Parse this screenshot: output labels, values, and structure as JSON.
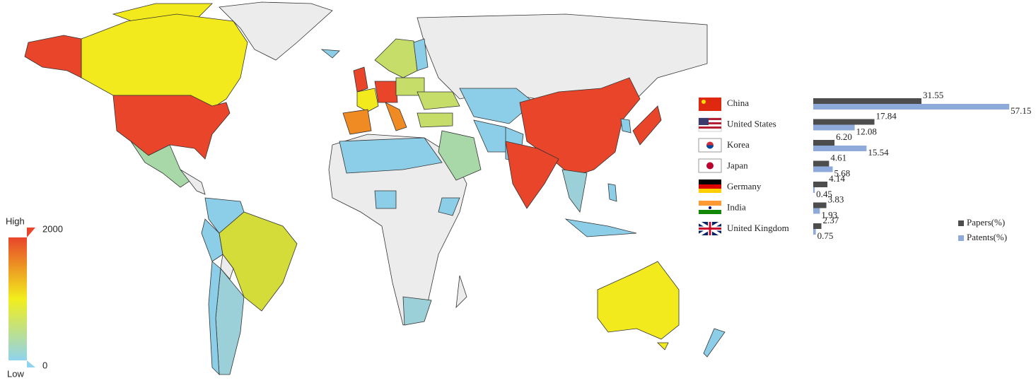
{
  "map": {
    "colorbar": {
      "high_label": "High",
      "low_label": "Low",
      "max": 2000,
      "min": 0
    }
  },
  "chart_data": {
    "type": "bar",
    "orientation": "horizontal",
    "categories": [
      "China",
      "United States",
      "Korea",
      "Japan",
      "Germany",
      "India",
      "United Kingdom"
    ],
    "series": [
      {
        "name": "Papers(%)",
        "color": "#4d4d4d",
        "values": [
          31.55,
          17.84,
          6.2,
          4.61,
          4.14,
          3.83,
          2.37
        ],
        "value_labels": [
          "31.55",
          "17.84",
          "6.20",
          "4.61",
          "4.14",
          "3.83",
          "2.37"
        ]
      },
      {
        "name": "Patents(%)",
        "color": "#8eaadb",
        "values": [
          57.15,
          12.08,
          15.54,
          5.68,
          0.45,
          1.93,
          0.75
        ],
        "value_labels": [
          "57.15",
          "12.08",
          "15.54",
          "5.68",
          "0.45",
          "1.93",
          "0.75"
        ]
      }
    ],
    "legend": "right"
  }
}
